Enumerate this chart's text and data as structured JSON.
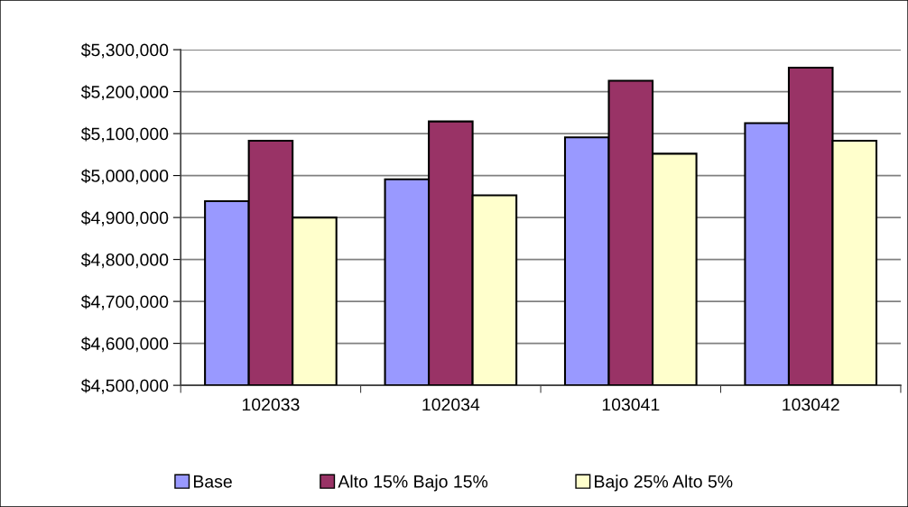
{
  "chart_data": {
    "type": "bar",
    "categories": [
      "102033",
      "102034",
      "103041",
      "103042"
    ],
    "series": [
      {
        "name": "Base",
        "color": "#9999ff",
        "values": [
          4939000,
          4991000,
          5091000,
          5125000
        ]
      },
      {
        "name": "Alto 15% Bajo 15%",
        "color": "#993366",
        "values": [
          5083000,
          5129000,
          5226000,
          5257000
        ]
      },
      {
        "name": "Bajo 25% Alto 5%",
        "color": "#ffffcc",
        "values": [
          4900000,
          4953000,
          5052000,
          5083000
        ]
      }
    ],
    "ylim": [
      4500000,
      5300000
    ],
    "yticks": [
      {
        "value": 4500000,
        "label": "$4,500,000"
      },
      {
        "value": 4600000,
        "label": "$4,600,000"
      },
      {
        "value": 4700000,
        "label": "$4,700,000"
      },
      {
        "value": 4800000,
        "label": "$4,800,000"
      },
      {
        "value": 4900000,
        "label": "$4,900,000"
      },
      {
        "value": 5000000,
        "label": "$5,000,000"
      },
      {
        "value": 5100000,
        "label": "$5,100,000"
      },
      {
        "value": 5200000,
        "label": "$5,200,000"
      },
      {
        "value": 5300000,
        "label": "$5,300,000"
      }
    ],
    "grid": "y",
    "legend": "bottom"
  }
}
